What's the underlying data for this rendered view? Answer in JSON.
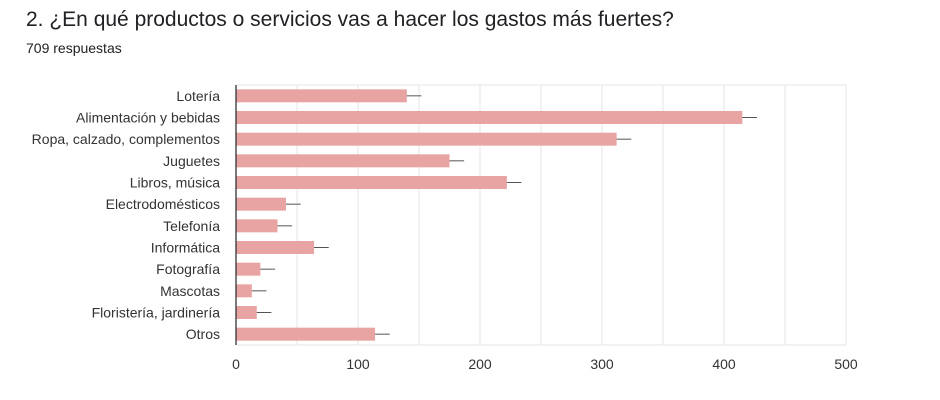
{
  "question": {
    "title": "2. ¿En qué productos o servicios vas a hacer los gastos más fuertes?",
    "responses": "709 respuestas"
  },
  "colors": {
    "bar": "#e8a3a3",
    "error_bar": "#555555",
    "grid": "#e6e6e6",
    "axis": "#333333"
  },
  "chart_data": {
    "type": "bar",
    "orientation": "horizontal",
    "categories": [
      "Lotería",
      "Alimentación y bebidas",
      "Ropa, calzado, complementos",
      "Juguetes",
      "Libros, música",
      "Electrodomésticos",
      "Telefonía",
      "Informática",
      "Fotografía",
      "Mascotas",
      "Floristería, jardinería",
      "Otros"
    ],
    "values": [
      140,
      415,
      312,
      175,
      222,
      41,
      34,
      64,
      20,
      13,
      17,
      114
    ],
    "error_upper": [
      152,
      427,
      324,
      187,
      234,
      53,
      46,
      76,
      32,
      25,
      29,
      126
    ],
    "xlim": [
      0,
      500
    ],
    "xticks": [
      0,
      100,
      200,
      300,
      400,
      500
    ],
    "grid": true,
    "legend": "none"
  }
}
